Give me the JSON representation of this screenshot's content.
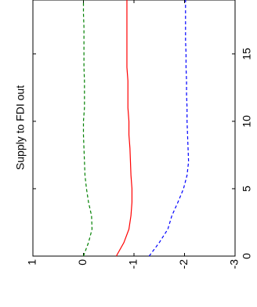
{
  "chart_data": {
    "type": "line",
    "title": "Supply to FDI out",
    "xlabel": "",
    "ylabel": "",
    "xlim": [
      0,
      19
    ],
    "ylim": [
      -3,
      1
    ],
    "x_ticks": [
      0,
      5,
      10,
      15
    ],
    "y_ticks": [
      1,
      0,
      -1,
      -2,
      -3
    ],
    "grid": false,
    "orientation": "rotated-90-cw",
    "series": [
      {
        "style": "dashed",
        "color": "#008000",
        "x": [
          0,
          1,
          2,
          3,
          4,
          5,
          6,
          7,
          8,
          9,
          10,
          11,
          12,
          13,
          14,
          15,
          16,
          17,
          18,
          19
        ],
        "values": [
          0,
          -0.1,
          -0.17,
          -0.16,
          -0.1,
          -0.06,
          -0.03,
          -0.02,
          -0.01,
          0,
          0,
          -0.02,
          -0.02,
          -0.02,
          -0.01,
          -0.01,
          -0.01,
          -0.01,
          0,
          0
        ]
      },
      {
        "style": "solid",
        "color": "#ff0000",
        "x": [
          0,
          1,
          2,
          3,
          4,
          5,
          6,
          7,
          8,
          9,
          10,
          11,
          12,
          13,
          14,
          15,
          16,
          17,
          18,
          19
        ],
        "values": [
          -0.65,
          -0.8,
          -0.9,
          -0.94,
          -0.96,
          -0.96,
          -0.94,
          -0.93,
          -0.92,
          -0.9,
          -0.9,
          -0.88,
          -0.88,
          -0.88,
          -0.86,
          -0.86,
          -0.86,
          -0.86,
          -0.86,
          -0.86
        ]
      },
      {
        "style": "dashed",
        "color": "#0000ff",
        "x": [
          0,
          1,
          2,
          3,
          4,
          5,
          6,
          7,
          8,
          9,
          10,
          11,
          12,
          13,
          14,
          15,
          16,
          17,
          18,
          19
        ],
        "values": [
          -1.3,
          -1.5,
          -1.67,
          -1.75,
          -1.87,
          -1.98,
          -2.05,
          -2.08,
          -2.07,
          -2.06,
          -2.05,
          -2.05,
          -2.04,
          -2.04,
          -2.03,
          -2.03,
          -2.02,
          -2.02,
          -2.02,
          -2.02
        ]
      }
    ]
  }
}
